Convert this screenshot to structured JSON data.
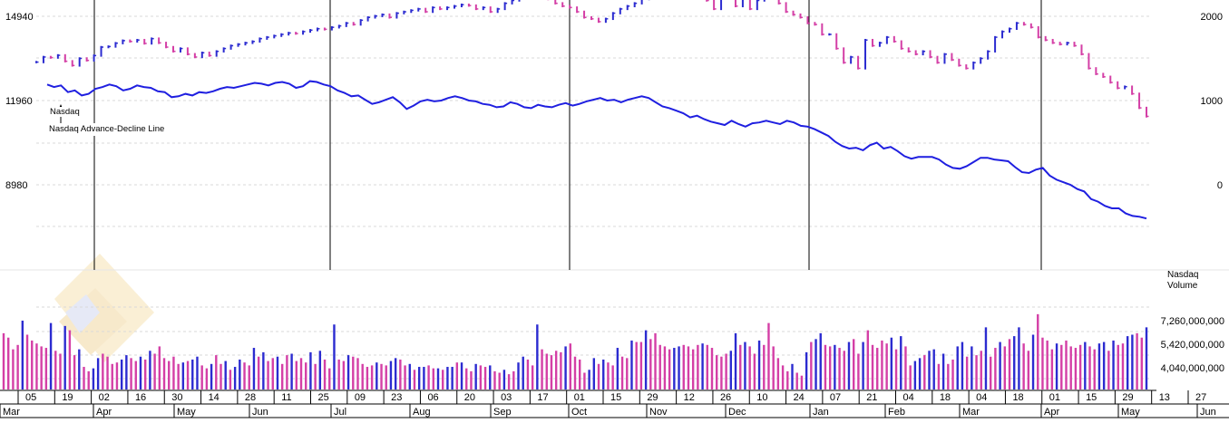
{
  "chart_data": [
    {
      "type": "line",
      "series": [
        {
          "name": "Nasdaq",
          "style": "bar",
          "color_up": "#2b2bd0",
          "color_down": "#d43fa6"
        },
        {
          "name": "Nasdaq Advance-Decline Line",
          "color": "#1f1fe0"
        }
      ],
      "left_axis": {
        "ticks": [
          14940,
          11960,
          8980
        ]
      },
      "right_axis": {
        "ticks": [
          2000,
          1000,
          0
        ]
      },
      "nasdaq_close": [
        13320,
        13500,
        13480,
        13560,
        13350,
        13200,
        13450,
        13380,
        13550,
        13850,
        13870,
        13990,
        14080,
        14050,
        14100,
        13980,
        14150,
        14000,
        13850,
        13700,
        13800,
        13600,
        13500,
        13650,
        13550,
        13700,
        13800,
        13900,
        13950,
        14000,
        14050,
        14150,
        14200,
        14250,
        14300,
        14350,
        14330,
        14400,
        14450,
        14500,
        14480,
        14550,
        14600,
        14700,
        14650,
        14800,
        14900,
        14950,
        15000,
        14900,
        15050,
        15100,
        15150,
        15200,
        15100,
        15250,
        15200,
        15250,
        15300,
        15350,
        15320,
        15200,
        15250,
        15100,
        15200,
        15400,
        15500,
        15600,
        15650,
        15700,
        15650,
        15550,
        15400,
        15300,
        15250,
        15100,
        14900,
        14850,
        14750,
        14850,
        15050,
        15200,
        15300,
        15400,
        15550,
        15700,
        15800,
        15900,
        15850,
        15950,
        15900,
        16000,
        15800,
        15500,
        15200,
        15600,
        15700,
        15300,
        15600,
        15200,
        15500,
        15650,
        15700,
        15400,
        15100,
        15000,
        14900,
        14700,
        14650,
        14300,
        14300,
        13800,
        13300,
        13500,
        13100,
        14100,
        13900,
        14000,
        14200,
        14050,
        13800,
        13700,
        13600,
        13700,
        13500,
        13300,
        13600,
        13400,
        13200,
        13100,
        13300,
        13450,
        13700,
        14200,
        14400,
        14500,
        14700,
        14650,
        14550,
        14200,
        14100,
        14000,
        13950,
        14000,
        13900,
        13600,
        13100,
        12900,
        12800,
        12600,
        12400,
        12450,
        12200,
        11700,
        11400
      ],
      "ad_line": [
        1190,
        1160,
        1180,
        1100,
        1120,
        1060,
        1080,
        1140,
        1160,
        1190,
        1170,
        1120,
        1140,
        1180,
        1160,
        1150,
        1110,
        1100,
        1040,
        1050,
        1080,
        1060,
        1100,
        1090,
        1110,
        1140,
        1160,
        1150,
        1170,
        1190,
        1210,
        1200,
        1180,
        1210,
        1220,
        1200,
        1150,
        1170,
        1230,
        1220,
        1190,
        1170,
        1120,
        1090,
        1050,
        1060,
        1010,
        960,
        980,
        1010,
        1040,
        980,
        900,
        940,
        990,
        1010,
        990,
        1000,
        1030,
        1050,
        1030,
        1000,
        990,
        960,
        950,
        920,
        930,
        980,
        960,
        920,
        910,
        950,
        930,
        920,
        950,
        970,
        940,
        960,
        990,
        1010,
        1030,
        1000,
        1010,
        980,
        1010,
        1030,
        1050,
        1030,
        980,
        930,
        910,
        880,
        850,
        800,
        820,
        780,
        750,
        730,
        710,
        760,
        720,
        690,
        730,
        740,
        760,
        740,
        720,
        760,
        740,
        700,
        690,
        660,
        620,
        580,
        510,
        460,
        430,
        440,
        410,
        470,
        500,
        430,
        450,
        400,
        340,
        310,
        330,
        330,
        330,
        300,
        240,
        200,
        190,
        220,
        270,
        320,
        320,
        300,
        290,
        280,
        210,
        150,
        140,
        180,
        200,
        110,
        60,
        30,
        0,
        -50,
        -80,
        -170,
        -200,
        -250,
        -280,
        -280,
        -340,
        -370,
        -380,
        -400
      ]
    },
    {
      "type": "bar",
      "title": "Nasdaq Volume",
      "ticks": [
        "7,260,000,000",
        "5,420,000,000",
        "4,040,000,000"
      ],
      "values": [
        6400000000,
        6100000000,
        5300000000,
        5600000000,
        7260000000,
        6300000000,
        5900000000,
        5700000000,
        5500000000,
        5400000000,
        7100000000,
        5200000000,
        5000000000,
        6900000000,
        6600000000,
        4900000000,
        5300000000,
        4100000000,
        3800000000,
        4000000000,
        4700000000,
        5000000000,
        4800000000,
        4300000000,
        4400000000,
        4600000000,
        4900000000,
        4700000000,
        4500000000,
        4800000000,
        4600000000,
        5200000000,
        5000000000,
        5500000000,
        4700000000,
        4500000000,
        4800000000,
        4300000000,
        4400000000,
        4500000000,
        4600000000,
        4800000000,
        4200000000,
        4000000000,
        4300000000,
        4900000000,
        4300000000,
        4500000000,
        3900000000,
        4100000000,
        4600000000,
        4400000000,
        4200000000,
        5400000000,
        4800000000,
        5100000000,
        4500000000,
        4700000000,
        4800000000,
        4300000000,
        4900000000,
        5000000000,
        4500000000,
        4700000000,
        4400000000,
        5100000000,
        4300000000,
        5200000000,
        4600000000,
        4000000000,
        7000000000,
        4600000000,
        4500000000,
        4900000000,
        4800000000,
        4700000000,
        4300000000,
        4100000000,
        4200000000,
        4400000000,
        4300000000,
        4200000000,
        4500000000,
        4700000000,
        4600000000,
        4200000000,
        4300000000,
        3900000000,
        4100000000,
        4100000000,
        4200000000,
        4000000000,
        4000000000,
        3900000000,
        4100000000,
        4100000000,
        4400000000,
        4400000000,
        4000000000,
        3800000000,
        4300000000,
        4200000000,
        4100000000,
        4200000000,
        3800000000,
        3700000000,
        3900000000,
        3600000000,
        3800000000,
        4400000000,
        4800000000,
        4600000000,
        4200000000,
        7000000000,
        5300000000,
        5000000000,
        4900000000,
        5200000000,
        5100000000,
        5500000000,
        5700000000,
        4800000000,
        4600000000,
        3700000000,
        3900000000,
        4700000000,
        4300000000,
        4600000000,
        4400000000,
        4200000000,
        5400000000,
        4800000000,
        4700000000,
        5900000000,
        5800000000,
        5800000000,
        6600000000,
        6000000000,
        6400000000,
        5600000000,
        5500000000,
        5300000000,
        5400000000,
        5500000000,
        5600000000,
        5500000000,
        5300000000,
        5600000000,
        5700000000,
        5600000000,
        5400000000,
        4900000000,
        4800000000,
        5000000000,
        5200000000,
        6400000000,
        5600000000,
        5800000000,
        5500000000,
        5000000000,
        5900000000,
        5600000000,
        7100000000,
        5500000000,
        4700000000,
        4200000000,
        3800000000,
        4300000000,
        3700000000,
        3500000000,
        5100000000,
        5800000000,
        6000000000,
        6400000000,
        5600000000,
        5500000000,
        5600000000,
        5400000000,
        5200000000,
        5800000000,
        6000000000,
        5000000000,
        5800000000,
        6600000000,
        5600000000,
        5400000000,
        5900000000,
        5700000000,
        6100000000,
        5300000000,
        6200000000,
        5500000000,
        4200000000,
        4500000000,
        4700000000,
        4900000000,
        5200000000,
        5300000000,
        4300000000,
        5000000000,
        4300000000,
        4600000000,
        5500000000,
        5800000000,
        4800000000,
        5500000000,
        4900000000,
        5200000000,
        6800000000,
        4800000000,
        5400000000,
        5800000000,
        5500000000,
        6000000000,
        6200000000,
        6800000000,
        5700000000,
        5200000000,
        6300000000,
        7700000000,
        6100000000,
        5900000000,
        5300000000,
        5700000000,
        5600000000,
        5900000000,
        5500000000,
        5400000000,
        5600000000,
        5800000000,
        5500000000,
        5300000000,
        5700000000,
        5800000000,
        5200000000,
        5900000000,
        5600000000,
        5700000000,
        6200000000,
        6300000000,
        6400000000,
        6100000000,
        6800000000
      ]
    }
  ],
  "x_axis": {
    "day_labels": [
      "05",
      "19",
      "02",
      "16",
      "30",
      "14",
      "28",
      "11",
      "25",
      "09",
      "23",
      "06",
      "20",
      "03",
      "17",
      "01",
      "15",
      "29",
      "12",
      "26",
      "10",
      "24",
      "07",
      "21",
      "04",
      "18",
      "04",
      "18",
      "01",
      "15",
      "29",
      "13",
      "27"
    ],
    "month_labels": [
      "Mar",
      "Apr",
      "May",
      "Jun",
      "Jul",
      "Aug",
      "Sep",
      "Oct",
      "Nov",
      "Dec",
      "Jan",
      "Feb",
      "Mar",
      "Apr",
      "May",
      "Jun"
    ]
  },
  "legend": {
    "nasdaq": "Nasdaq",
    "ad_line": "Nasdaq Advance-Decline Line"
  },
  "volume_title_line1": "Nasdaq",
  "volume_title_line2": "Volume",
  "colors": {
    "up": "#2b2bd0",
    "down": "#d43fa6",
    "ad_line": "#1f1fe0",
    "grid": "#d9d9d9"
  }
}
